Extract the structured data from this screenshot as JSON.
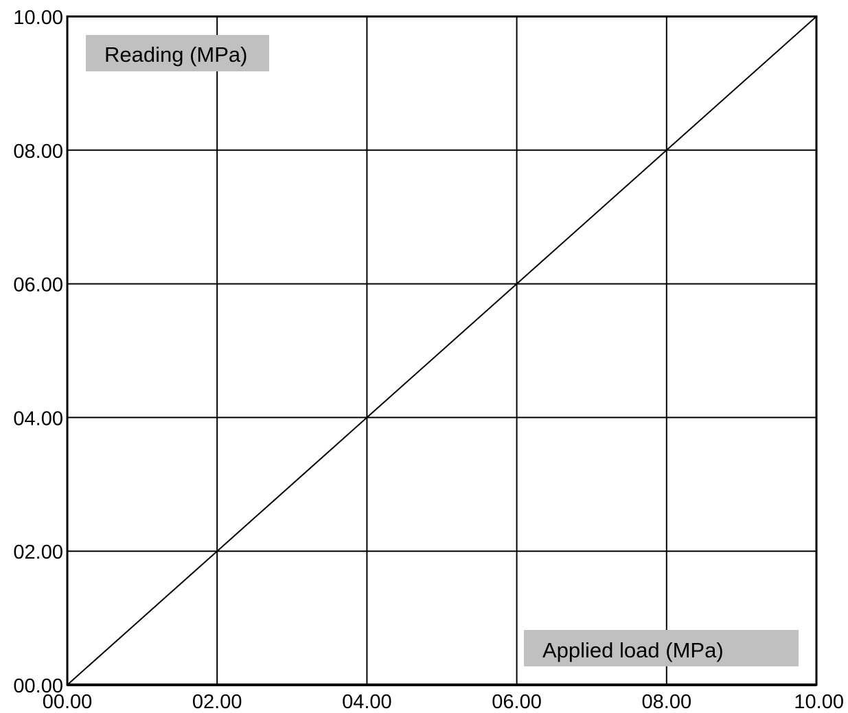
{
  "chart_data": {
    "type": "line",
    "title": "",
    "xlabel": "Applied load (MPa)",
    "ylabel": "Reading (MPa)",
    "xlim": [
      0,
      10
    ],
    "ylim": [
      0,
      10
    ],
    "x_ticks": [
      0,
      2,
      4,
      6,
      8,
      10
    ],
    "y_ticks": [
      0,
      2,
      4,
      6,
      8,
      10
    ],
    "x_tick_labels": [
      "00.00",
      "02.00",
      "04.00",
      "06.00",
      "08.00",
      "10.00"
    ],
    "y_tick_labels": [
      "00.00",
      "02.00",
      "04.00",
      "06.00",
      "08.00",
      "10.00"
    ],
    "grid": true,
    "legend": "none",
    "series": [
      {
        "x": [
          0,
          2,
          4,
          6,
          8,
          10
        ],
        "y": [
          0,
          2,
          4,
          6,
          8,
          10
        ],
        "color": "#000000"
      }
    ]
  }
}
